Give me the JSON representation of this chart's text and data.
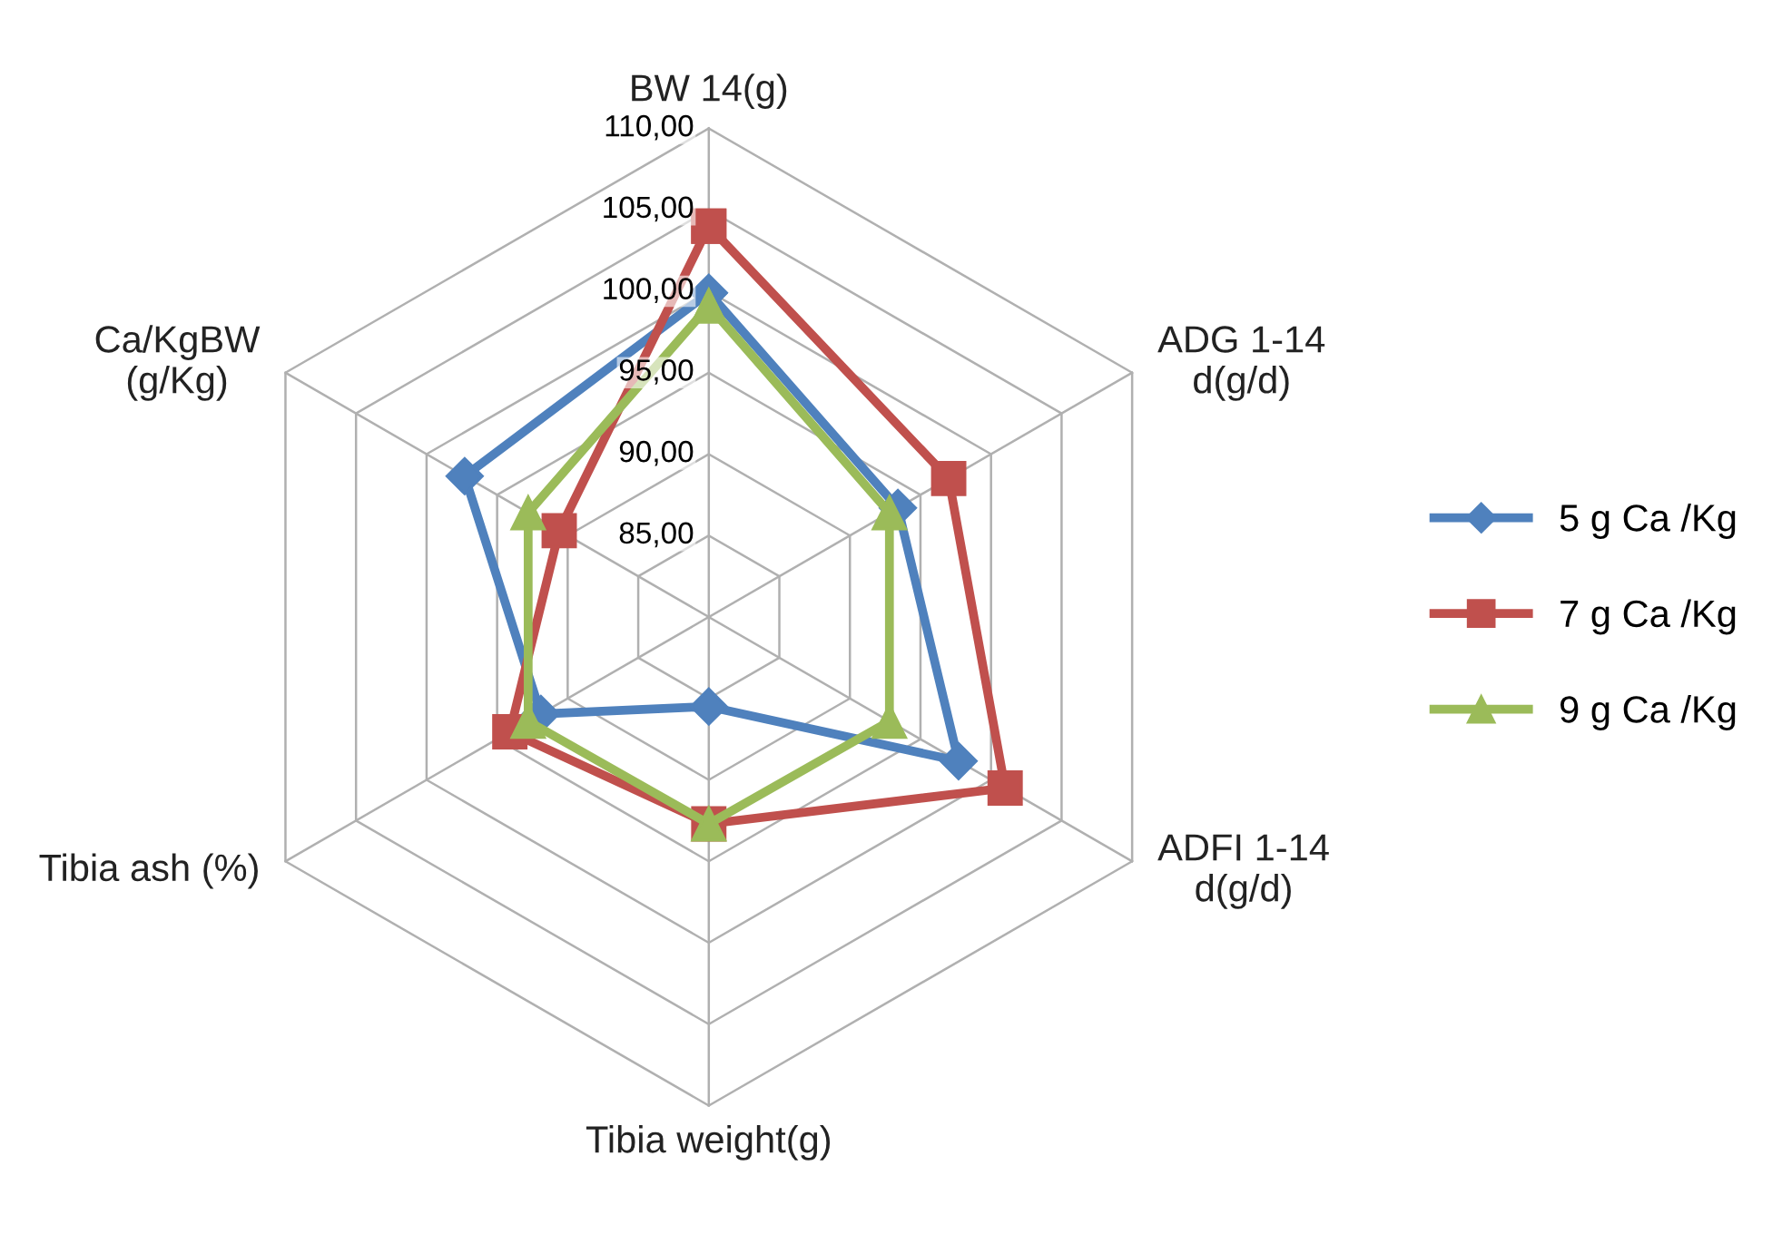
{
  "chart_data": {
    "type": "radar",
    "categories": [
      "BW 14(g)",
      "ADG 1-14\nd(g/d)",
      "ADFI 1-14\nd(g/d)",
      "Tibia weight(g)",
      "Tibia ash (%)",
      "Ca/KgBW\n(g/Kg)"
    ],
    "ylim": [
      80,
      110
    ],
    "yticks": [
      {
        "value": 85,
        "label": "85,00"
      },
      {
        "value": 90,
        "label": "90,00"
      },
      {
        "value": 95,
        "label": "95,00"
      },
      {
        "value": 100,
        "label": "100,00"
      },
      {
        "value": 105,
        "label": "105,00"
      },
      {
        "value": 110,
        "label": "110,00"
      }
    ],
    "grid": true,
    "legend": "right",
    "series": [
      {
        "name": "5 g Ca /Kg",
        "color": "#4f81bd",
        "marker": "diamond",
        "values": [
          99.9,
          93.4,
          97.7,
          85.5,
          91.9,
          97.3
        ]
      },
      {
        "name": "7 g Ca /Kg",
        "color": "#c0504d",
        "marker": "square",
        "values": [
          104,
          97,
          101,
          92.7,
          94.1,
          90.6
        ]
      },
      {
        "name": "9 g Ca /Kg",
        "color": "#9bbb59",
        "marker": "triangle",
        "values": [
          99.1,
          92.8,
          92.8,
          92.7,
          92.8,
          92.8
        ]
      }
    ]
  }
}
